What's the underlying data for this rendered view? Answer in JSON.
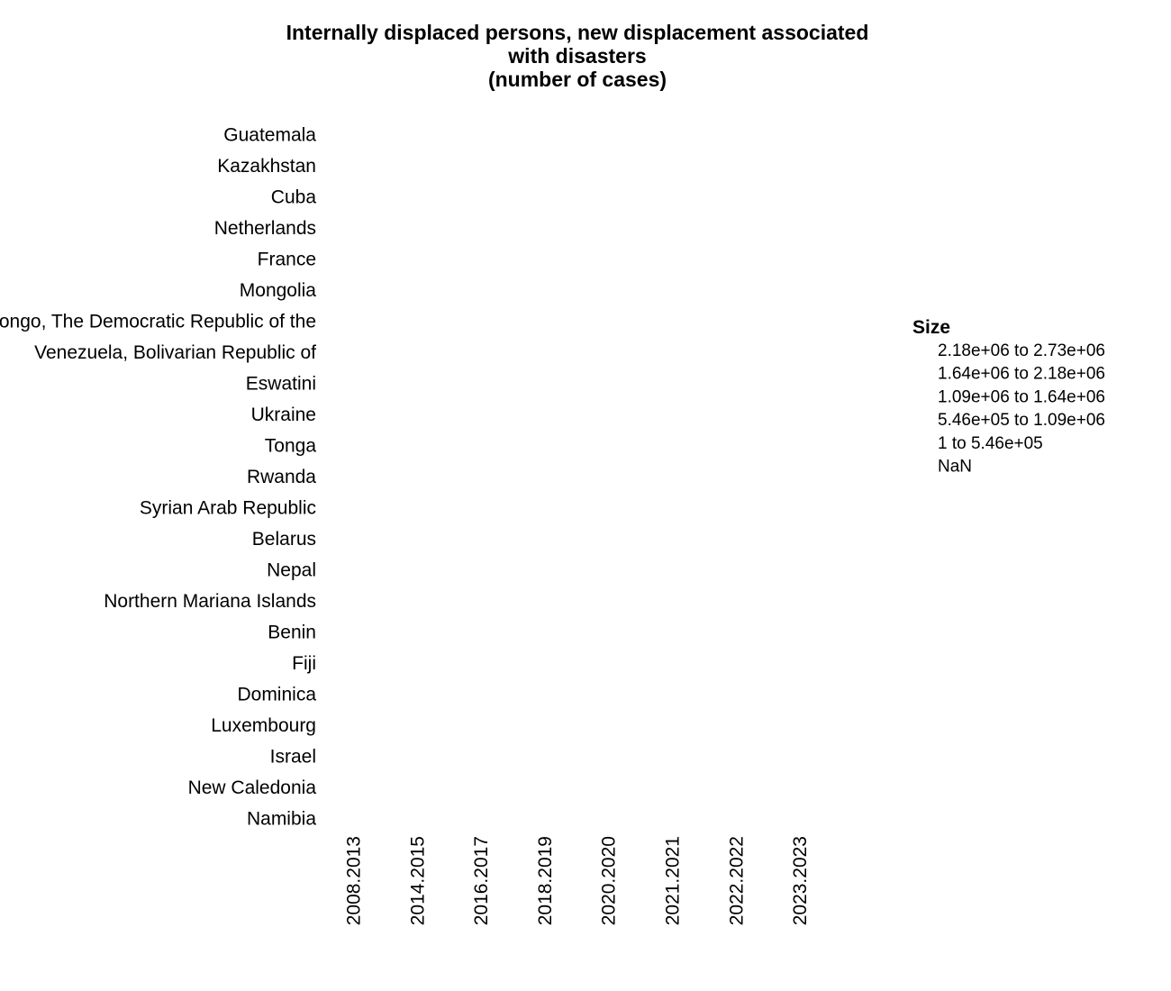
{
  "chart_data": {
    "type": "scatter",
    "title": "Internally displaced persons, new displacement associated with disasters\n(number of cases)",
    "title_lines": [
      "Internally displaced persons, new displacement associated",
      "with disasters",
      "(number of cases)"
    ],
    "xlabel": "",
    "ylabel": "",
    "categories_x": [
      "2008.2013",
      "2014.2015",
      "2016.2017",
      "2018.2019",
      "2020.2020",
      "2021.2021",
      "2022.2022",
      "2023.2023"
    ],
    "categories_y": [
      "Guatemala",
      "Kazakhstan",
      "Cuba",
      "Netherlands",
      "France",
      "Mongolia",
      "Congo, The Democratic Republic of the",
      "Venezuela, Bolivarian Republic of",
      "Eswatini",
      "Ukraine",
      "Tonga",
      "Rwanda",
      "Syrian Arab Republic",
      "Belarus",
      "Nepal",
      "Northern Mariana Islands",
      "Benin",
      "Fiji",
      "Dominica",
      "Luxembourg",
      "Israel",
      "New Caledonia",
      "Namibia"
    ],
    "series": [],
    "grid": false,
    "legend": {
      "title": "Size",
      "placement": "right",
      "items": [
        "2.18e+06 to 2.73e+06",
        "1.64e+06 to 2.18e+06",
        "1.09e+06 to 1.64e+06",
        "5.46e+05 to 1.09e+06",
        "1 to 5.46e+05",
        "NaN"
      ]
    }
  }
}
